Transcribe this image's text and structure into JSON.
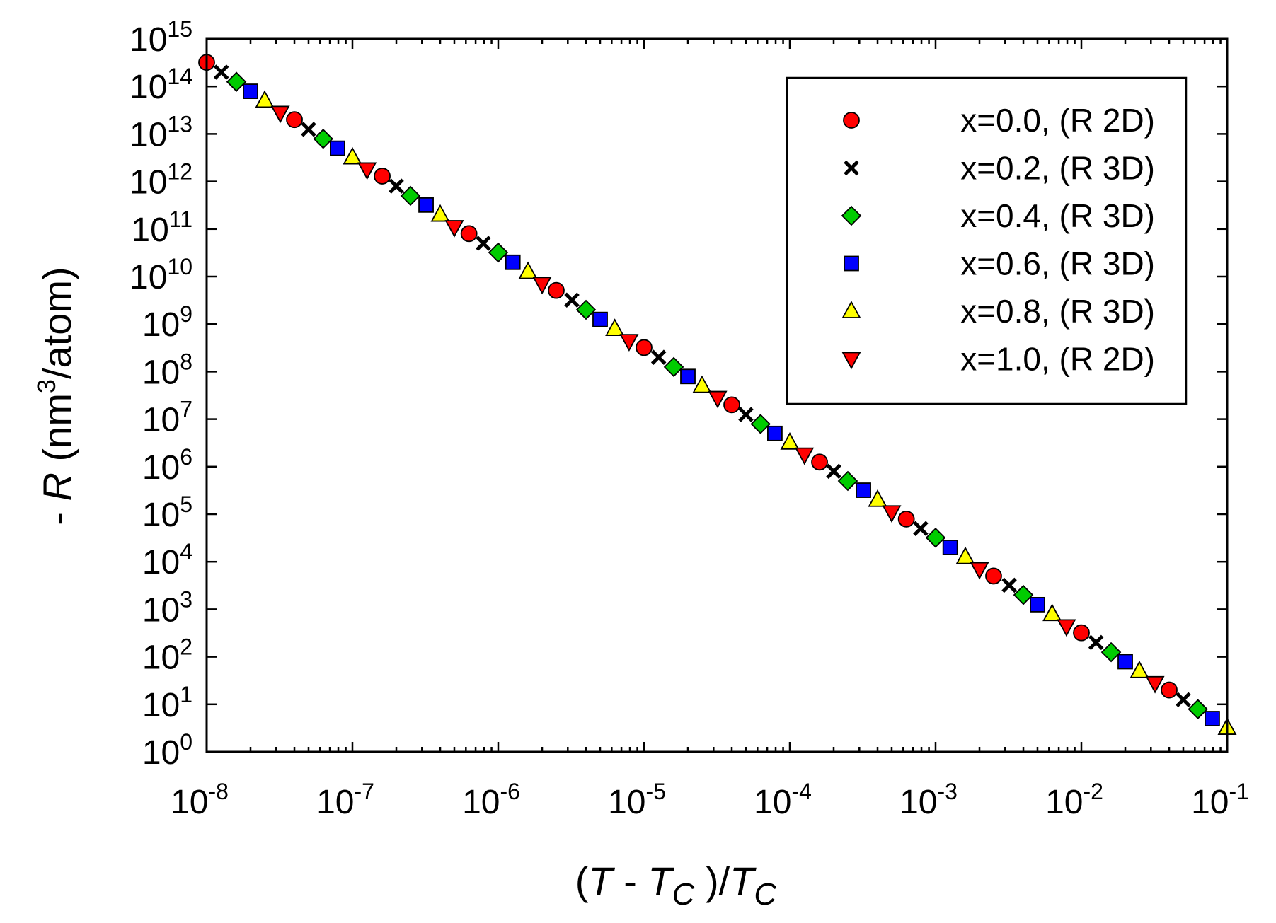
{
  "chart_data": {
    "type": "scatter",
    "title": "",
    "xlabel": {
      "parts": [
        "(",
        "T",
        " - ",
        "T",
        "C",
        " )/",
        "T",
        "C"
      ]
    },
    "ylabel": {
      "parts": [
        "- ",
        "R",
        " (nm",
        "3",
        "/atom)"
      ]
    },
    "xscale": "log",
    "yscale": "log",
    "xlim": [
      1e-08,
      0.1
    ],
    "ylim": [
      1,
      1000000000000000.0
    ],
    "x_tick_labels": [
      {
        "base": "10",
        "exp": "-8",
        "value": 1e-08
      },
      {
        "base": "10",
        "exp": "-7",
        "value": 1e-07
      },
      {
        "base": "10",
        "exp": "-6",
        "value": 1e-06
      },
      {
        "base": "10",
        "exp": "-5",
        "value": 1e-05
      },
      {
        "base": "10",
        "exp": "-4",
        "value": 0.0001
      },
      {
        "base": "10",
        "exp": "-3",
        "value": 0.001
      },
      {
        "base": "10",
        "exp": "-2",
        "value": 0.01
      },
      {
        "base": "10",
        "exp": "-1",
        "value": 0.1
      }
    ],
    "y_tick_labels": [
      {
        "base": "10",
        "exp": "0",
        "value": 1.0
      },
      {
        "base": "10",
        "exp": "1",
        "value": 10.0
      },
      {
        "base": "10",
        "exp": "2",
        "value": 100.0
      },
      {
        "base": "10",
        "exp": "3",
        "value": 1000.0
      },
      {
        "base": "10",
        "exp": "4",
        "value": 10000.0
      },
      {
        "base": "10",
        "exp": "5",
        "value": 100000.0
      },
      {
        "base": "10",
        "exp": "6",
        "value": 1000000.0
      },
      {
        "base": "10",
        "exp": "7",
        "value": 10000000.0
      },
      {
        "base": "10",
        "exp": "8",
        "value": 100000000.0
      },
      {
        "base": "10",
        "exp": "9",
        "value": 1000000000.0
      },
      {
        "base": "10",
        "exp": "10",
        "value": 10000000000.0
      },
      {
        "base": "10",
        "exp": "11",
        "value": 100000000000.0
      },
      {
        "base": "10",
        "exp": "12",
        "value": 1000000000000.0
      },
      {
        "base": "10",
        "exp": "13",
        "value": 10000000000000.0
      },
      {
        "base": "10",
        "exp": "14",
        "value": 100000000000000.0
      },
      {
        "base": "10",
        "exp": "15",
        "value": 1000000000000000.0
      }
    ],
    "legend_position": "top-right",
    "series": [
      {
        "name": "x=0.0, (R 2D)",
        "marker": "circle",
        "color": "#ff0000",
        "x": [
          1e-08,
          4e-08,
          1.6e-07,
          6.3e-07,
          2.5e-06,
          1e-05,
          4e-05,
          0.00016,
          0.00063,
          0.0025,
          0.01,
          0.04
        ],
        "y": [
          320000000000000.0,
          20000000000000.0,
          1300000000000.0,
          80000000000.0,
          5100000000.0,
          320000000.0,
          20000000.0,
          1250000.0,
          79000.0,
          5000.0,
          320.0,
          20.0
        ]
      },
      {
        "name": "x=0.2, (R 3D)",
        "marker": "cross",
        "color": "#000000",
        "x": [
          1.26e-08,
          5e-08,
          2e-07,
          7.9e-07,
          3.2e-06,
          1.26e-05,
          5e-05,
          0.0002,
          0.00079,
          0.0032,
          0.0126,
          0.05
        ],
        "y": [
          200000000000000.0,
          12500000000000.0,
          800000000000.0,
          50000000000.0,
          3200000000.0,
          200000000.0,
          12500000.0,
          800000.0,
          50000.0,
          3200.0,
          200.0,
          12.5
        ]
      },
      {
        "name": "x=0.4, (R 3D)",
        "marker": "diamond",
        "color": "#00cc00",
        "x": [
          1.6e-08,
          6.3e-08,
          2.5e-07,
          1e-06,
          4e-06,
          1.6e-05,
          6.3e-05,
          0.00025,
          0.001,
          0.004,
          0.016,
          0.063
        ],
        "y": [
          125000000000000.0,
          7900000000000.0,
          500000000000.0,
          32000000000.0,
          2000000000.0,
          125000000.0,
          7900000.0,
          500000.0,
          32000.0,
          2000.0,
          125.0,
          7.9
        ]
      },
      {
        "name": "x=0.6, (R 3D)",
        "marker": "square",
        "color": "#0000ff",
        "x": [
          2e-08,
          7.9e-08,
          3.2e-07,
          1.26e-06,
          5e-06,
          2e-05,
          7.9e-05,
          0.00032,
          0.00126,
          0.005,
          0.02,
          0.079
        ],
        "y": [
          79000000000000.0,
          5000000000000.0,
          320000000000.0,
          20000000000.0,
          1250000000.0,
          79000000.0,
          5000000.0,
          320000.0,
          20000.0,
          1250.0,
          79.0,
          5.0
        ]
      },
      {
        "name": "x=0.8, (R 3D)",
        "marker": "triangle-up",
        "color": "#ffff00",
        "x": [
          2.5e-08,
          1e-07,
          4e-07,
          1.6e-06,
          6.3e-06,
          2.5e-05,
          0.0001,
          0.0004,
          0.0016,
          0.0063,
          0.025,
          0.1
        ],
        "y": [
          50000000000000.0,
          3200000000000.0,
          200000000000.0,
          12500000000.0,
          790000000.0,
          50000000.0,
          3200000.0,
          200000.0,
          12500.0,
          790.0,
          50.0,
          3.2
        ]
      },
      {
        "name": "x=1.0, (R 2D)",
        "marker": "triangle-down",
        "color": "#ff0000",
        "x": [
          3.2e-08,
          1.26e-07,
          5e-07,
          2e-06,
          7.9e-06,
          3.2e-05,
          0.000126,
          0.0005,
          0.002,
          0.0079,
          0.032
        ],
        "y": [
          28000000000000.0,
          1800000000000.0,
          110000000000.0,
          7000000000.0,
          440000000.0,
          28000000.0,
          1800000.0,
          110000.0,
          7000.0,
          440.0,
          28.0
        ]
      }
    ]
  }
}
